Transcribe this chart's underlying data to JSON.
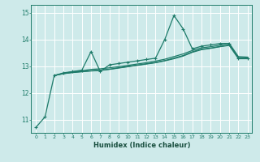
{
  "title": "",
  "xlabel": "Humidex (Indice chaleur)",
  "ylabel": "",
  "xlim": [
    -0.5,
    23.5
  ],
  "ylim": [
    10.5,
    15.3
  ],
  "yticks": [
    11,
    12,
    13,
    14,
    15
  ],
  "xticks": [
    0,
    1,
    2,
    3,
    4,
    5,
    6,
    7,
    8,
    9,
    10,
    11,
    12,
    13,
    14,
    15,
    16,
    17,
    18,
    19,
    20,
    21,
    22,
    23
  ],
  "bg_color": "#ceeaea",
  "grid_color": "#ffffff",
  "line_color": "#1e7b6a",
  "lines": [
    {
      "x": [
        0,
        1,
        2,
        3,
        4,
        5,
        6,
        7,
        8,
        9,
        10,
        11,
        12,
        13,
        14,
        15,
        16,
        17,
        18,
        19,
        20,
        21,
        22,
        23
      ],
      "y": [
        10.7,
        11.1,
        12.65,
        12.75,
        12.8,
        12.85,
        13.55,
        12.8,
        13.05,
        13.1,
        13.15,
        13.2,
        13.25,
        13.3,
        14.0,
        14.9,
        14.4,
        13.65,
        13.75,
        13.8,
        13.85,
        13.85,
        13.3,
        13.3
      ],
      "marker": "+",
      "lw": 0.9
    },
    {
      "x": [
        2,
        3,
        4,
        5,
        6,
        7,
        8,
        9,
        10,
        11,
        12,
        13,
        14,
        15,
        16,
        17,
        18,
        19,
        20,
        21,
        22,
        23
      ],
      "y": [
        12.65,
        12.72,
        12.76,
        12.79,
        12.82,
        12.84,
        12.88,
        12.93,
        12.98,
        13.03,
        13.08,
        13.13,
        13.2,
        13.28,
        13.38,
        13.52,
        13.62,
        13.67,
        13.73,
        13.78,
        13.28,
        13.28
      ],
      "marker": null,
      "lw": 0.9
    },
    {
      "x": [
        2,
        3,
        4,
        5,
        6,
        7,
        8,
        9,
        10,
        11,
        12,
        13,
        14,
        15,
        16,
        17,
        18,
        19,
        20,
        21,
        22,
        23
      ],
      "y": [
        12.65,
        12.72,
        12.77,
        12.8,
        12.83,
        12.85,
        12.89,
        12.94,
        12.99,
        13.04,
        13.09,
        13.14,
        13.21,
        13.3,
        13.4,
        13.54,
        13.64,
        13.68,
        13.74,
        13.8,
        13.32,
        13.3
      ],
      "marker": null,
      "lw": 0.9
    },
    {
      "x": [
        2,
        3,
        4,
        5,
        6,
        7,
        8,
        9,
        10,
        11,
        12,
        13,
        14,
        15,
        16,
        17,
        18,
        19,
        20,
        21,
        22,
        23
      ],
      "y": [
        12.65,
        12.73,
        12.79,
        12.83,
        12.88,
        12.9,
        12.94,
        12.98,
        13.03,
        13.08,
        13.13,
        13.19,
        13.26,
        13.36,
        13.46,
        13.59,
        13.69,
        13.73,
        13.79,
        13.86,
        13.36,
        13.34
      ],
      "marker": null,
      "lw": 0.9
    }
  ]
}
